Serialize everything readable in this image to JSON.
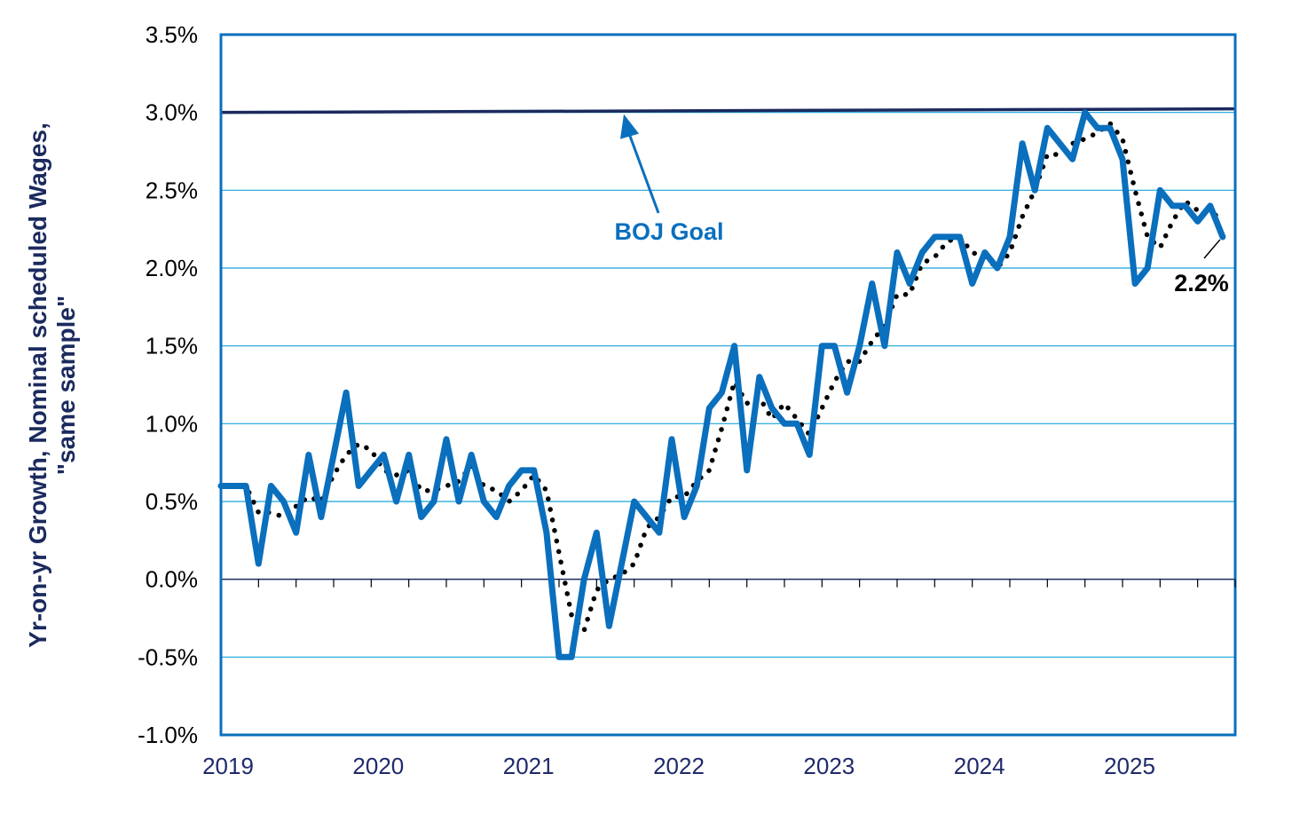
{
  "chart_data": {
    "type": "line",
    "title": "",
    "ylabel_lines": [
      "Yr-on-yr Growth, Nominal scheduled Wages,",
      "\"same sample\""
    ],
    "xlabel": "",
    "ylim": [
      -1.0,
      3.5
    ],
    "yticks": [
      -1.0,
      -0.5,
      0.0,
      0.5,
      1.0,
      1.5,
      2.0,
      2.5,
      3.0,
      3.5
    ],
    "ytick_labels": [
      "-1.0%",
      "-0.5%",
      "0.0%",
      "0.5%",
      "1.0%",
      "1.5%",
      "2.0%",
      "2.5%",
      "3.0%",
      "3.5%"
    ],
    "xlim": [
      2019.0,
      2025.75
    ],
    "xtick_labels": [
      "2019",
      "2020",
      "2021",
      "2022",
      "2023",
      "2024",
      "2025"
    ],
    "grid": "horizontal",
    "series": [
      {
        "role": "monthly",
        "style": "solid",
        "color": "#0a6fbd",
        "start": "2019-01",
        "values": [
          0.6,
          0.6,
          0.6,
          0.1,
          0.6,
          0.5,
          0.3,
          0.8,
          0.4,
          0.8,
          1.2,
          0.6,
          0.7,
          0.8,
          0.5,
          0.8,
          0.4,
          0.5,
          0.9,
          0.5,
          0.8,
          0.5,
          0.4,
          0.6,
          0.7,
          0.7,
          0.3,
          -0.5,
          -0.5,
          0.0,
          0.3,
          -0.3,
          0.1,
          0.5,
          0.4,
          0.3,
          0.9,
          0.4,
          0.6,
          1.1,
          1.2,
          1.5,
          0.7,
          1.3,
          1.1,
          1.0,
          1.0,
          0.8,
          1.5,
          1.5,
          1.2,
          1.5,
          1.9,
          1.5,
          2.1,
          1.9,
          2.1,
          2.2,
          2.2,
          2.2,
          1.9,
          2.1,
          2.0,
          2.2,
          2.8,
          2.5,
          2.9,
          2.8,
          2.7,
          3.0,
          2.9,
          2.9,
          2.7,
          1.9,
          2.0,
          2.5,
          2.4,
          2.4,
          2.3,
          2.4,
          2.2
        ]
      },
      {
        "role": "3-month average",
        "style": "dotted",
        "color": "#000000",
        "start": "2019-01",
        "values": [
          0.6,
          0.6,
          0.6,
          0.43,
          0.43,
          0.4,
          0.47,
          0.53,
          0.5,
          0.67,
          0.8,
          0.87,
          0.83,
          0.7,
          0.67,
          0.7,
          0.57,
          0.57,
          0.6,
          0.63,
          0.73,
          0.6,
          0.57,
          0.5,
          0.57,
          0.67,
          0.57,
          0.17,
          -0.23,
          -0.33,
          -0.07,
          0.0,
          0.03,
          0.1,
          0.33,
          0.4,
          0.53,
          0.53,
          0.63,
          0.7,
          0.97,
          1.27,
          1.13,
          1.17,
          1.03,
          1.13,
          1.03,
          0.93,
          1.1,
          1.27,
          1.4,
          1.4,
          1.53,
          1.63,
          1.83,
          1.83,
          2.03,
          2.07,
          2.17,
          2.2,
          2.1,
          2.07,
          2.0,
          2.1,
          2.33,
          2.5,
          2.73,
          2.73,
          2.8,
          2.83,
          2.87,
          2.93,
          2.83,
          2.5,
          2.2,
          2.13,
          2.3,
          2.43,
          2.37,
          2.37,
          2.3
        ]
      }
    ],
    "reference_line": {
      "value": 3.0,
      "color": "#1b2a5e",
      "label": "BOJ Goal"
    },
    "annotations": [
      {
        "text": "BOJ Goal",
        "target": "reference_line"
      },
      {
        "text": "2.2%",
        "target": "last_value"
      }
    ]
  }
}
